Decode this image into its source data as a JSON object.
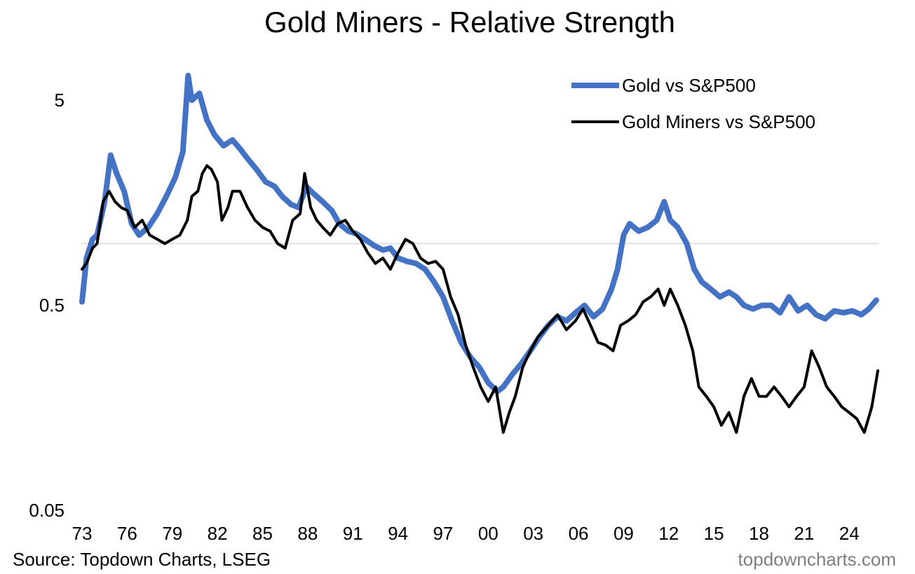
{
  "chart_data": {
    "type": "line",
    "title": "Gold Miners - Relative Strength",
    "xlabel": "",
    "ylabel": "",
    "y_scale": "log",
    "ylim": [
      0.05,
      10
    ],
    "yticks": [
      5,
      0.5,
      0.05
    ],
    "ytick_labels": [
      "5",
      "0.5",
      "0.05"
    ],
    "xlim": [
      1973,
      2025.9
    ],
    "xticks": [
      1973,
      1976,
      1979,
      1982,
      1985,
      1988,
      1991,
      1994,
      1997,
      2000,
      2003,
      2006,
      2009,
      2012,
      2015,
      2018,
      2021,
      2024
    ],
    "xtick_labels": [
      "73",
      "76",
      "79",
      "82",
      "85",
      "88",
      "91",
      "94",
      "97",
      "00",
      "03",
      "06",
      "09",
      "12",
      "15",
      "18",
      "21",
      "24"
    ],
    "grid": "horizontal line at 1",
    "legend_position": "top-right",
    "series": [
      {
        "name": "Gold vs S&P500",
        "color": "#4472c4",
        "x": [
          1973,
          1973.3,
          1973.7,
          1974,
          1974.5,
          1974.9,
          1975.3,
          1975.8,
          1976.3,
          1976.8,
          1977.4,
          1978,
          1978.6,
          1979.2,
          1979.7,
          1980.05,
          1980.3,
          1980.8,
          1981.3,
          1981.8,
          1982.4,
          1983,
          1983.5,
          1984,
          1984.6,
          1985.2,
          1985.8,
          1986.3,
          1986.9,
          1987.4,
          1987.9,
          1988.4,
          1989,
          1989.6,
          1990.1,
          1990.7,
          1991.2,
          1991.8,
          1992.4,
          1993,
          1993.5,
          1994,
          1994.6,
          1995.2,
          1995.8,
          1996.4,
          1997,
          1997.6,
          1998.2,
          1998.8,
          1999.4,
          2000,
          2000.6,
          2001,
          2001.6,
          2002.2,
          2002.8,
          2003.4,
          2004,
          2004.6,
          2005.2,
          2005.8,
          2006.4,
          2007,
          2007.6,
          2008.2,
          2008.6,
          2009,
          2009.4,
          2010,
          2010.6,
          2011.2,
          2011.7,
          2012.1,
          2012.6,
          2013.2,
          2013.7,
          2014.2,
          2014.8,
          2015.4,
          2016,
          2016.5,
          2017,
          2017.6,
          2018.2,
          2018.8,
          2019.4,
          2020,
          2020.6,
          2021.2,
          2021.8,
          2022.4,
          2023,
          2023.6,
          2024.2,
          2024.8,
          2025.3,
          2025.8
        ],
        "y": [
          0.52,
          0.85,
          1.05,
          1.1,
          1.6,
          2.7,
          2.2,
          1.8,
          1.25,
          1.1,
          1.2,
          1.4,
          1.7,
          2.1,
          2.8,
          6.6,
          5.0,
          5.4,
          4.0,
          3.4,
          3.0,
          3.2,
          2.9,
          2.6,
          2.3,
          2.0,
          1.9,
          1.7,
          1.55,
          1.5,
          1.9,
          1.75,
          1.6,
          1.45,
          1.25,
          1.15,
          1.12,
          1.05,
          0.98,
          0.93,
          0.95,
          0.85,
          0.82,
          0.8,
          0.75,
          0.65,
          0.55,
          0.42,
          0.33,
          0.28,
          0.25,
          0.21,
          0.19,
          0.2,
          0.23,
          0.26,
          0.3,
          0.35,
          0.4,
          0.44,
          0.42,
          0.46,
          0.5,
          0.44,
          0.48,
          0.6,
          0.75,
          1.1,
          1.25,
          1.15,
          1.2,
          1.3,
          1.6,
          1.3,
          1.2,
          1.0,
          0.75,
          0.65,
          0.6,
          0.55,
          0.58,
          0.55,
          0.5,
          0.48,
          0.5,
          0.5,
          0.46,
          0.55,
          0.47,
          0.5,
          0.45,
          0.43,
          0.47,
          0.46,
          0.47,
          0.45,
          0.48,
          0.53
        ]
      },
      {
        "name": "Gold Miners vs S&P500",
        "color": "#000000",
        "x": [
          1973,
          1973.3,
          1973.7,
          1974,
          1974.4,
          1974.8,
          1975.2,
          1975.6,
          1976,
          1976.5,
          1977,
          1977.5,
          1978,
          1978.5,
          1979,
          1979.5,
          1980,
          1980.3,
          1980.7,
          1981,
          1981.3,
          1981.6,
          1982,
          1982.3,
          1982.7,
          1983,
          1983.5,
          1984,
          1984.5,
          1985,
          1985.5,
          1986,
          1986.5,
          1987,
          1987.5,
          1987.8,
          1988.2,
          1988.6,
          1989,
          1989.5,
          1990,
          1990.5,
          1991,
          1991.5,
          1992,
          1992.5,
          1993,
          1993.5,
          1994,
          1994.5,
          1995,
          1995.5,
          1996,
          1996.5,
          1997,
          1997.5,
          1998,
          1998.5,
          1999,
          1999.5,
          2000,
          2000.5,
          2001,
          2001.4,
          2001.8,
          2002.3,
          2002.8,
          2003.3,
          2004,
          2004.6,
          2005.2,
          2005.8,
          2006.3,
          2006.8,
          2007.3,
          2007.8,
          2008.3,
          2008.8,
          2009.3,
          2009.8,
          2010.3,
          2010.8,
          2011.3,
          2011.7,
          2012.1,
          2012.6,
          2013.1,
          2013.6,
          2014,
          2014.5,
          2015,
          2015.5,
          2016,
          2016.5,
          2017,
          2017.5,
          2018,
          2018.5,
          2019,
          2019.5,
          2020,
          2020.5,
          2021,
          2021.5,
          2022,
          2022.5,
          2023,
          2023.5,
          2024,
          2024.5,
          2025,
          2025.5,
          2025.9
        ],
        "y": [
          0.75,
          0.8,
          0.95,
          1.0,
          1.6,
          1.8,
          1.6,
          1.5,
          1.45,
          1.2,
          1.3,
          1.1,
          1.05,
          1.0,
          1.05,
          1.1,
          1.3,
          1.7,
          1.8,
          2.2,
          2.4,
          2.3,
          2.0,
          1.3,
          1.5,
          1.8,
          1.8,
          1.5,
          1.3,
          1.2,
          1.15,
          1.0,
          0.95,
          1.3,
          1.4,
          2.2,
          1.5,
          1.3,
          1.2,
          1.1,
          1.25,
          1.3,
          1.15,
          1.05,
          0.9,
          0.8,
          0.85,
          0.75,
          0.9,
          1.05,
          1.0,
          0.85,
          0.8,
          0.82,
          0.75,
          0.55,
          0.45,
          0.32,
          0.25,
          0.2,
          0.17,
          0.2,
          0.12,
          0.15,
          0.18,
          0.25,
          0.3,
          0.35,
          0.4,
          0.45,
          0.38,
          0.42,
          0.48,
          0.4,
          0.33,
          0.32,
          0.3,
          0.4,
          0.42,
          0.45,
          0.52,
          0.55,
          0.6,
          0.5,
          0.6,
          0.5,
          0.4,
          0.3,
          0.2,
          0.18,
          0.16,
          0.13,
          0.15,
          0.12,
          0.18,
          0.22,
          0.18,
          0.18,
          0.2,
          0.18,
          0.16,
          0.18,
          0.2,
          0.3,
          0.25,
          0.2,
          0.18,
          0.16,
          0.15,
          0.14,
          0.12,
          0.16,
          0.24
        ]
      }
    ]
  },
  "source_text": "Source: Topdown Charts, LSEG",
  "brand_text": "topdowncharts.com"
}
